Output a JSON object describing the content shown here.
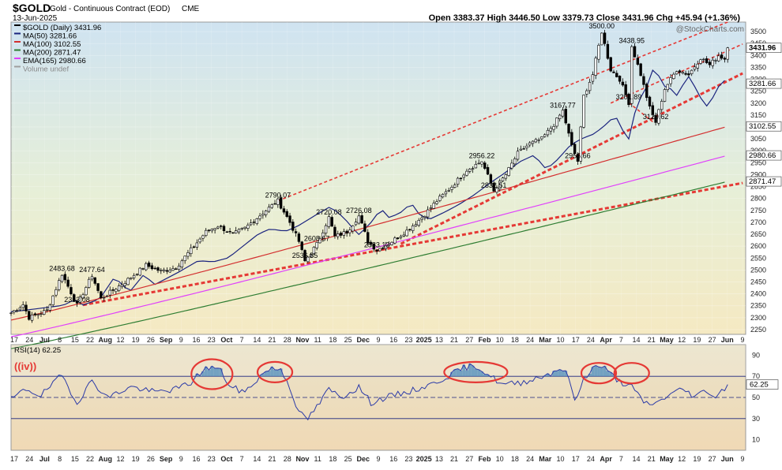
{
  "header": {
    "symbol": "$GOLD",
    "name": "Gold - Continuous Contract (EOD)",
    "exchange": "CME",
    "date": "13-Jun-2025",
    "ohlc": "Open 3383.37  High 3446.50  Low 3379.73  Close 3431.96  Chg +45.94 (+1.36%)",
    "watermark": "@StockCharts.com"
  },
  "legend": [
    {
      "label": "$GOLD (Daily) 3431.96",
      "color": "#000000"
    },
    {
      "label": "MA(50) 3281.66",
      "color": "#1a237e"
    },
    {
      "label": "MA(100) 3102.55",
      "color": "#d32f2f"
    },
    {
      "label": "MA(200) 2871.47",
      "color": "#2e7d32"
    },
    {
      "label": "EMA(165) 2980.66",
      "color": "#e040fb"
    },
    {
      "label": "Volume undef",
      "color": "#9e9e9e"
    }
  ],
  "price_axis": {
    "ticks": [
      2250,
      2300,
      2350,
      2400,
      2450,
      2500,
      2550,
      2600,
      2650,
      2700,
      2750,
      2800,
      2850,
      2900,
      2950,
      3000,
      3050,
      3100,
      3150,
      3200,
      3250,
      3300,
      3350,
      3400,
      3450,
      3500
    ]
  },
  "value_tags": [
    {
      "label": "3431.96",
      "value": 3431.96,
      "bold": true
    },
    {
      "label": "3281.66",
      "value": 3281.66,
      "bold": false
    },
    {
      "label": "3102.55",
      "value": 3102.55,
      "bold": false
    },
    {
      "label": "2980.66",
      "value": 2980.66,
      "bold": false
    },
    {
      "label": "2871.47",
      "value": 2871.47,
      "bold": false
    }
  ],
  "x_axis_labels": [
    "17",
    "24",
    "Jul",
    "8",
    "15",
    "22",
    "Aug",
    "12",
    "19",
    "26",
    "Sep",
    "9",
    "16",
    "23",
    "Oct",
    "7",
    "14",
    "21",
    "28",
    "Nov",
    "11",
    "18",
    "25",
    "Dec",
    "9",
    "16",
    "23",
    "2025",
    "13",
    "21",
    "27",
    "Feb",
    "10",
    "18",
    "24",
    "Mar",
    "10",
    "17",
    "24",
    "Apr",
    "7",
    "14",
    "21",
    "May",
    "12",
    "19",
    "27",
    "Jun",
    "9"
  ],
  "bold_x_labels": [
    "Jul",
    "Aug",
    "Sep",
    "Oct",
    "Nov",
    "Dec",
    "2025",
    "Feb",
    "Mar",
    "Apr",
    "May",
    "Jun"
  ],
  "price_annotations": [
    {
      "label": "2483.68",
      "day": 17,
      "value": 2483.68
    },
    {
      "label": "2477.64",
      "day": 27,
      "value": 2477.64
    },
    {
      "label": "2353.08",
      "day": 22,
      "value": 2353.08
    },
    {
      "label": "2790.07",
      "day": 89,
      "value": 2790.07
    },
    {
      "label": "2720.08",
      "day": 106,
      "value": 2720.08
    },
    {
      "label": "2726.08",
      "day": 116,
      "value": 2726.08
    },
    {
      "label": "2608.67",
      "day": 102,
      "value": 2608.67
    },
    {
      "label": "2536.85",
      "day": 98,
      "value": 2536.85
    },
    {
      "label": "2583.12",
      "day": 122,
      "value": 2583.12
    },
    {
      "label": "2956.22",
      "day": 157,
      "value": 2956.22
    },
    {
      "label": "2832.51",
      "day": 161,
      "value": 2832.51
    },
    {
      "label": "3167.77",
      "day": 184,
      "value": 3167.77
    },
    {
      "label": "2956.66",
      "day": 189,
      "value": 2956.66
    },
    {
      "label": "3500.00",
      "day": 197,
      "value": 3500.0
    },
    {
      "label": "3438.95",
      "day": 207,
      "value": 3438.95
    },
    {
      "label": "3201.89",
      "day": 206,
      "value": 3201.89
    },
    {
      "label": "3120.62",
      "day": 215,
      "value": 3120.62
    }
  ],
  "chart_data": [
    {
      "type": "line",
      "title": "$GOLD Gold - Continuous Contract (EOD) CME",
      "ylim": [
        2250,
        3500
      ],
      "anchors": [
        {
          "day": 0,
          "value": 2320
        },
        {
          "day": 4,
          "value": 2355
        },
        {
          "day": 6,
          "value": 2300
        },
        {
          "day": 12,
          "value": 2330
        },
        {
          "day": 17,
          "value": 2483.68
        },
        {
          "day": 22,
          "value": 2353.08
        },
        {
          "day": 27,
          "value": 2477.64
        },
        {
          "day": 30,
          "value": 2380
        },
        {
          "day": 38,
          "value": 2450
        },
        {
          "day": 45,
          "value": 2520
        },
        {
          "day": 50,
          "value": 2495
        },
        {
          "day": 55,
          "value": 2510
        },
        {
          "day": 60,
          "value": 2585
        },
        {
          "day": 65,
          "value": 2660
        },
        {
          "day": 69,
          "value": 2685
        },
        {
          "day": 74,
          "value": 2650
        },
        {
          "day": 78,
          "value": 2675
        },
        {
          "day": 84,
          "value": 2740
        },
        {
          "day": 89,
          "value": 2790.07
        },
        {
          "day": 93,
          "value": 2700
        },
        {
          "day": 96,
          "value": 2620
        },
        {
          "day": 98,
          "value": 2536.85
        },
        {
          "day": 102,
          "value": 2608.67
        },
        {
          "day": 106,
          "value": 2720.08
        },
        {
          "day": 108,
          "value": 2640
        },
        {
          "day": 112,
          "value": 2660
        },
        {
          "day": 116,
          "value": 2726.08
        },
        {
          "day": 119,
          "value": 2620
        },
        {
          "day": 122,
          "value": 2583.12
        },
        {
          "day": 127,
          "value": 2620
        },
        {
          "day": 132,
          "value": 2665
        },
        {
          "day": 137,
          "value": 2720
        },
        {
          "day": 142,
          "value": 2790
        },
        {
          "day": 147,
          "value": 2850
        },
        {
          "day": 152,
          "value": 2920
        },
        {
          "day": 157,
          "value": 2956.22
        },
        {
          "day": 161,
          "value": 2832.51
        },
        {
          "day": 165,
          "value": 2900
        },
        {
          "day": 169,
          "value": 2990
        },
        {
          "day": 173,
          "value": 3030
        },
        {
          "day": 177,
          "value": 3050
        },
        {
          "day": 181,
          "value": 3110
        },
        {
          "day": 184,
          "value": 3167.77
        },
        {
          "day": 187,
          "value": 3020
        },
        {
          "day": 189,
          "value": 2956.66
        },
        {
          "day": 191,
          "value": 3230
        },
        {
          "day": 194,
          "value": 3320
        },
        {
          "day": 197,
          "value": 3500.0
        },
        {
          "day": 200,
          "value": 3340
        },
        {
          "day": 203,
          "value": 3300
        },
        {
          "day": 206,
          "value": 3201.89
        },
        {
          "day": 207,
          "value": 3438.95
        },
        {
          "day": 210,
          "value": 3320
        },
        {
          "day": 213,
          "value": 3180
        },
        {
          "day": 215,
          "value": 3120.62
        },
        {
          "day": 218,
          "value": 3260
        },
        {
          "day": 222,
          "value": 3340
        },
        {
          "day": 226,
          "value": 3320
        },
        {
          "day": 230,
          "value": 3390
        },
        {
          "day": 233,
          "value": 3360
        },
        {
          "day": 236,
          "value": 3400
        },
        {
          "day": 238,
          "value": 3386
        },
        {
          "day": 239,
          "value": 3431.96
        }
      ],
      "moving_averages": [
        {
          "name": "MA(50)",
          "color": "#1a237e",
          "start": 2330,
          "end": 3281.66
        },
        {
          "name": "MA(100)",
          "color": "#d32f2f",
          "start": 2290,
          "end": 3102.55
        },
        {
          "name": "EMA(165)",
          "color": "#e040fb",
          "start": 2220,
          "end": 2980.66
        },
        {
          "name": "MA(200)",
          "color": "#2e7d32",
          "start": 2170,
          "end": 2871.47
        }
      ],
      "trendlines": [
        {
          "from": {
            "day": 89,
            "value": 2790.07
          },
          "to": {
            "day": 239,
            "value": 3540
          },
          "width": 1.6
        },
        {
          "from": {
            "day": 24,
            "value": 2353.08
          },
          "to": {
            "day": 244,
            "value": 2865
          },
          "width": 3
        },
        {
          "from": {
            "day": 130,
            "value": 2610
          },
          "to": {
            "day": 244,
            "value": 3325
          },
          "width": 3
        },
        {
          "from": {
            "day": 200,
            "value": 3200
          },
          "to": {
            "day": 244,
            "value": 3448
          },
          "width": 1.6
        },
        {
          "from": {
            "day": 206,
            "value": 3201.89
          },
          "to": {
            "day": 214,
            "value": 3122
          },
          "width": 1.6
        }
      ]
    },
    {
      "type": "line",
      "title": "RSI(14) 62.25",
      "ylim": [
        0,
        100
      ],
      "value": 62.25,
      "label_box": "62.25",
      "annotation": "((iv))",
      "overbought": 70,
      "oversold": 30,
      "midline": 50,
      "ticks": [
        10,
        30,
        50,
        70,
        90
      ],
      "anchors": [
        {
          "day": 0,
          "value": 48
        },
        {
          "day": 5,
          "value": 58
        },
        {
          "day": 10,
          "value": 52
        },
        {
          "day": 17,
          "value": 71
        },
        {
          "day": 22,
          "value": 45
        },
        {
          "day": 27,
          "value": 66
        },
        {
          "day": 32,
          "value": 50
        },
        {
          "day": 40,
          "value": 60
        },
        {
          "day": 48,
          "value": 55
        },
        {
          "day": 55,
          "value": 58
        },
        {
          "day": 60,
          "value": 64
        },
        {
          "day": 64,
          "value": 76
        },
        {
          "day": 67,
          "value": 79
        },
        {
          "day": 70,
          "value": 75
        },
        {
          "day": 73,
          "value": 60
        },
        {
          "day": 78,
          "value": 55
        },
        {
          "day": 83,
          "value": 70
        },
        {
          "day": 86,
          "value": 77
        },
        {
          "day": 90,
          "value": 77
        },
        {
          "day": 93,
          "value": 60
        },
        {
          "day": 96,
          "value": 35
        },
        {
          "day": 99,
          "value": 30
        },
        {
          "day": 103,
          "value": 45
        },
        {
          "day": 106,
          "value": 58
        },
        {
          "day": 110,
          "value": 50
        },
        {
          "day": 116,
          "value": 60
        },
        {
          "day": 120,
          "value": 45
        },
        {
          "day": 125,
          "value": 50
        },
        {
          "day": 132,
          "value": 55
        },
        {
          "day": 140,
          "value": 62
        },
        {
          "day": 147,
          "value": 72
        },
        {
          "day": 151,
          "value": 78
        },
        {
          "day": 155,
          "value": 80
        },
        {
          "day": 160,
          "value": 70
        },
        {
          "day": 164,
          "value": 62
        },
        {
          "day": 170,
          "value": 64
        },
        {
          "day": 176,
          "value": 69
        },
        {
          "day": 180,
          "value": 73
        },
        {
          "day": 183,
          "value": 78
        },
        {
          "day": 186,
          "value": 70
        },
        {
          "day": 188,
          "value": 45
        },
        {
          "day": 191,
          "value": 68
        },
        {
          "day": 194,
          "value": 78
        },
        {
          "day": 197,
          "value": 80
        },
        {
          "day": 200,
          "value": 72
        },
        {
          "day": 203,
          "value": 65
        },
        {
          "day": 207,
          "value": 60
        },
        {
          "day": 211,
          "value": 45
        },
        {
          "day": 215,
          "value": 44
        },
        {
          "day": 219,
          "value": 52
        },
        {
          "day": 224,
          "value": 58
        },
        {
          "day": 228,
          "value": 51
        },
        {
          "day": 232,
          "value": 57
        },
        {
          "day": 235,
          "value": 50
        },
        {
          "day": 239,
          "value": 62.25
        }
      ],
      "highlight_circles": [
        {
          "day": 67,
          "value": 72
        },
        {
          "day": 88,
          "value": 74
        },
        {
          "day": 155,
          "value": 74
        },
        {
          "day": 196,
          "value": 73
        },
        {
          "day": 207,
          "value": 73
        }
      ]
    }
  ]
}
